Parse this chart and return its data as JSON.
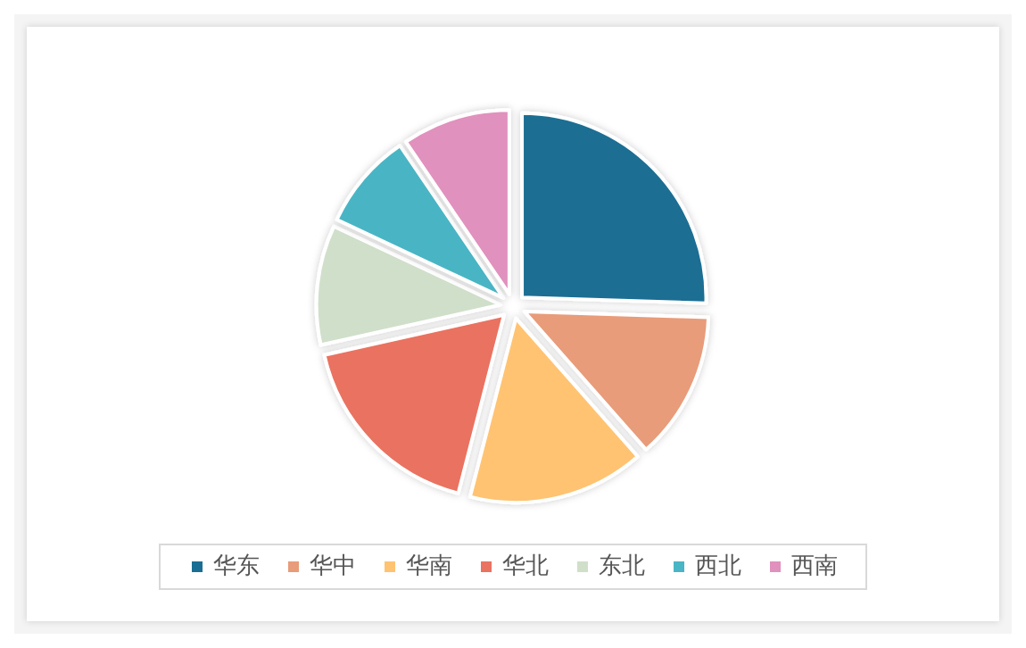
{
  "chart_data": {
    "type": "pie",
    "categories": [
      "华东",
      "华中",
      "华南",
      "华北",
      "东北",
      "西北",
      "西南"
    ],
    "values": [
      25.5,
      13,
      15.5,
      17.5,
      10.5,
      8.5,
      9.5
    ],
    "colors": [
      "#1b6e93",
      "#e89c7a",
      "#ffc372",
      "#ea7261",
      "#d0dfca",
      "#4ab5c4",
      "#e091bd"
    ],
    "legend": "bottom"
  }
}
